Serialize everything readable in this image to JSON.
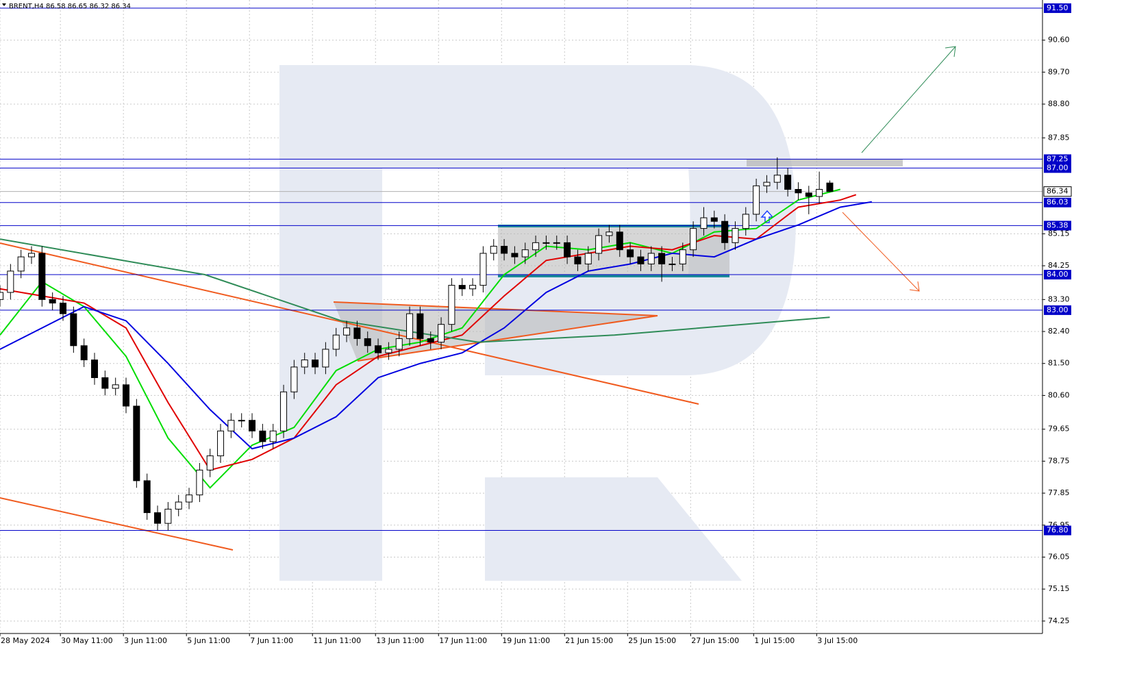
{
  "chart_data": {
    "type": "candlestick",
    "header": "BRENT,H4  86.58 86.65 86.32 86.34",
    "xlim": [
      0,
      198.5
    ],
    "ylim": [
      73.9,
      91.73
    ],
    "grid": true,
    "bull_color": "#ffffff",
    "bear_color": "#000000",
    "level_color": "#0000c8",
    "x": [
      0,
      2,
      4,
      6,
      8,
      10,
      12,
      14,
      16,
      18,
      20,
      22,
      24,
      26,
      28,
      30,
      32,
      34,
      36,
      38,
      40,
      42,
      44,
      46,
      48,
      50,
      52,
      54,
      56,
      58,
      60,
      62,
      64,
      66,
      68,
      70,
      72,
      74,
      76,
      78,
      80,
      82,
      84,
      86,
      88,
      90,
      92,
      94,
      96,
      98,
      100,
      102,
      104,
      106,
      108,
      110,
      112,
      114,
      116,
      118,
      120,
      122,
      124,
      126,
      128,
      130,
      132,
      134,
      136,
      138,
      140,
      142,
      144,
      146,
      148,
      150,
      152,
      154,
      156,
      158
    ],
    "open": [
      83.3,
      83.5,
      84.1,
      84.5,
      84.6,
      83.3,
      83.2,
      82.9,
      82.0,
      81.6,
      81.1,
      80.8,
      80.9,
      80.3,
      78.2,
      77.3,
      77.0,
      77.4,
      77.6,
      77.8,
      78.5,
      78.9,
      79.6,
      79.9,
      79.9,
      79.6,
      79.3,
      79.6,
      80.7,
      81.4,
      81.6,
      81.4,
      81.9,
      82.3,
      82.5,
      82.2,
      82.0,
      81.8,
      81.9,
      82.2,
      82.9,
      82.2,
      82.1,
      82.6,
      83.7,
      83.6,
      83.7,
      84.6,
      84.8,
      84.6,
      84.5,
      84.7,
      84.9,
      84.9,
      84.9,
      84.5,
      84.3,
      84.6,
      85.1,
      85.2,
      84.7,
      84.5,
      84.3,
      84.6,
      84.3,
      84.3,
      84.7,
      85.3,
      85.6,
      85.5,
      84.9,
      85.3,
      85.7,
      86.5,
      86.6,
      86.8,
      86.4,
      86.3,
      86.2,
      86.58
    ],
    "high": [
      83.7,
      84.3,
      84.7,
      84.8,
      84.8,
      83.5,
      83.4,
      83.1,
      82.2,
      81.8,
      81.3,
      81.1,
      81.1,
      80.5,
      78.4,
      77.5,
      77.6,
      77.8,
      78.0,
      78.7,
      79.1,
      79.8,
      80.1,
      80.1,
      80.1,
      79.8,
      79.8,
      80.9,
      81.6,
      81.8,
      81.8,
      82.1,
      82.5,
      82.7,
      82.7,
      82.4,
      82.2,
      82.1,
      82.4,
      83.1,
      83.1,
      82.4,
      82.8,
      83.9,
      83.9,
      83.9,
      84.8,
      85.0,
      85.0,
      84.8,
      84.9,
      85.1,
      85.1,
      85.1,
      85.1,
      84.7,
      84.8,
      85.3,
      85.4,
      85.4,
      84.9,
      84.7,
      84.8,
      84.8,
      84.5,
      84.9,
      85.5,
      85.9,
      85.8,
      85.7,
      85.5,
      85.9,
      86.7,
      86.8,
      87.3,
      87.0,
      86.6,
      86.5,
      86.9,
      86.65
    ],
    "low": [
      83.1,
      83.3,
      83.9,
      84.3,
      83.1,
      83.0,
      82.7,
      81.8,
      81.4,
      80.9,
      80.6,
      80.6,
      80.1,
      78.0,
      77.1,
      76.8,
      76.8,
      77.2,
      77.4,
      77.6,
      78.3,
      78.7,
      79.4,
      79.7,
      79.4,
      79.1,
      79.1,
      79.4,
      80.5,
      81.2,
      81.2,
      81.2,
      81.7,
      82.1,
      82.0,
      81.8,
      81.6,
      81.6,
      81.7,
      82.0,
      82.0,
      81.9,
      81.9,
      82.4,
      83.4,
      83.4,
      83.5,
      84.4,
      84.4,
      84.3,
      84.3,
      84.5,
      84.7,
      84.7,
      84.3,
      84.1,
      84.1,
      84.4,
      84.9,
      84.5,
      84.3,
      84.1,
      84.1,
      83.8,
      84.1,
      84.1,
      84.5,
      85.1,
      85.3,
      84.7,
      84.7,
      85.1,
      85.5,
      86.3,
      86.4,
      86.2,
      86.1,
      85.7,
      86.0,
      86.32
    ],
    "close": [
      83.5,
      84.1,
      84.5,
      84.6,
      83.3,
      83.2,
      82.9,
      82.0,
      81.6,
      81.1,
      80.8,
      80.9,
      80.3,
      78.2,
      77.3,
      77.0,
      77.4,
      77.6,
      77.8,
      78.5,
      78.9,
      79.6,
      79.9,
      79.9,
      79.6,
      79.3,
      79.6,
      80.7,
      81.4,
      81.6,
      81.4,
      81.9,
      82.3,
      82.5,
      82.2,
      82.0,
      81.8,
      81.9,
      82.2,
      82.9,
      82.2,
      82.1,
      82.6,
      83.7,
      83.6,
      83.7,
      84.6,
      84.8,
      84.6,
      84.5,
      84.7,
      84.9,
      84.9,
      84.9,
      84.5,
      84.3,
      84.6,
      85.1,
      85.2,
      84.7,
      84.5,
      84.3,
      84.6,
      84.3,
      84.3,
      84.7,
      85.3,
      85.6,
      85.5,
      84.9,
      85.3,
      85.7,
      86.5,
      86.6,
      86.8,
      86.4,
      86.3,
      86.2,
      86.4,
      86.34
    ],
    "series": [
      {
        "color": "#00dd00",
        "x": [
          0,
          8,
          16,
          24,
          32,
          40,
          48,
          56,
          64,
          72,
          80,
          88,
          96,
          104,
          112,
          120,
          128,
          136,
          144,
          152,
          160
        ],
        "values": [
          82.3,
          83.8,
          83.1,
          81.7,
          79.4,
          78.0,
          79.2,
          79.7,
          81.3,
          81.9,
          82.1,
          82.5,
          84.0,
          84.8,
          84.7,
          84.9,
          84.6,
          85.2,
          85.3,
          86.1,
          86.4
        ]
      },
      {
        "color": "#e00000",
        "x": [
          0,
          8,
          16,
          24,
          32,
          40,
          48,
          56,
          64,
          72,
          80,
          88,
          96,
          104,
          112,
          120,
          128,
          136,
          144,
          152,
          160,
          163
        ],
        "values": [
          83.6,
          83.4,
          83.2,
          82.5,
          80.4,
          78.5,
          78.8,
          79.4,
          80.9,
          81.7,
          82.0,
          82.3,
          83.4,
          84.4,
          84.6,
          84.8,
          84.7,
          85.1,
          85.0,
          85.9,
          86.1,
          86.25
        ]
      },
      {
        "color": "#0000e0",
        "x": [
          0,
          8,
          16,
          24,
          32,
          40,
          48,
          56,
          64,
          72,
          80,
          88,
          96,
          104,
          112,
          120,
          128,
          136,
          144,
          152,
          160,
          166
        ],
        "values": [
          81.9,
          82.5,
          83.1,
          82.7,
          81.5,
          80.2,
          79.1,
          79.4,
          80.0,
          81.1,
          81.5,
          81.8,
          82.5,
          83.5,
          84.1,
          84.3,
          84.6,
          84.5,
          85.0,
          85.4,
          85.9,
          86.05
        ]
      },
      {
        "color": "#2e8b57",
        "x": [
          0,
          39,
          65,
          91,
          117,
          158
        ],
        "values": [
          85.0,
          84.0,
          82.7,
          82.1,
          82.3,
          82.8
        ]
      }
    ],
    "levels": [
      {
        "value": 91.5,
        "label": "91.50"
      },
      {
        "value": 87.25,
        "label": "87.25"
      },
      {
        "value": 87,
        "label": "87.00"
      },
      {
        "value": 86.03,
        "label": "86.03"
      },
      {
        "value": 85.38,
        "label": "85.38"
      },
      {
        "value": 84,
        "label": "84.00"
      },
      {
        "value": 83,
        "label": "83.00"
      },
      {
        "value": 76.8,
        "label": "76.80"
      }
    ],
    "current_price": {
      "value": 86.34,
      "label": "86.34"
    },
    "yticks": [
      {
        "value": 90.6,
        "label": "90.60"
      },
      {
        "value": 89.7,
        "label": "89.70"
      },
      {
        "value": 88.8,
        "label": "88.80"
      },
      87.85,
      85.15,
      84.25,
      {
        "value": 83.3,
        "label": "83.30"
      },
      {
        "value": 82.4,
        "label": "82.40"
      },
      {
        "value": 81.5,
        "label": "81.50"
      },
      {
        "value": 80.6,
        "label": "80.60"
      },
      79.65,
      78.75,
      77.85,
      76.95,
      76.05,
      75.15,
      74.25
    ],
    "xticks": [
      {
        "value": 0,
        "label": "28 May 2024"
      },
      {
        "value": 11.5,
        "label": "30 May 11:00"
      },
      {
        "value": 23.5,
        "label": "3 Jun 11:00"
      },
      {
        "value": 35.5,
        "label": "5 Jun 11:00"
      },
      {
        "value": 47.5,
        "label": "7 Jun 11:00"
      },
      {
        "value": 59.5,
        "label": "11 Jun 11:00"
      },
      {
        "value": 71.5,
        "label": "13 Jun 11:00"
      },
      {
        "value": 83.5,
        "label": "17 Jun 11:00"
      },
      {
        "value": 95.5,
        "label": "19 Jun 11:00"
      },
      {
        "value": 107.5,
        "label": "21 Jun 15:00"
      },
      {
        "value": 119.5,
        "label": "25 Jun 15:00"
      },
      {
        "value": 131.5,
        "label": "27 Jun 15:00"
      },
      {
        "value": 143.5,
        "label": "1 Jul 15:00"
      },
      {
        "value": 155.5,
        "label": "3 Jul 15:00"
      }
    ]
  }
}
